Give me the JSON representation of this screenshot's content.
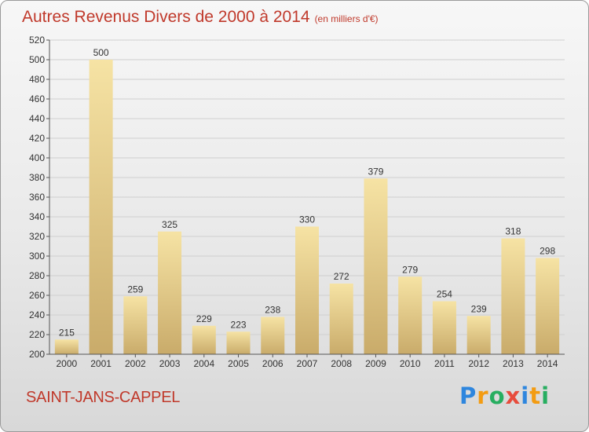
{
  "title": "Autres Revenus Divers de 2000 à 2014",
  "unit_note": "(en milliers d'€)",
  "city": "SAINT-JANS-CAPPEL",
  "logo": {
    "text": "Proxiti",
    "letters": [
      {
        "ch": "P",
        "color": "#2e86de"
      },
      {
        "ch": "r",
        "color": "#f39c12"
      },
      {
        "ch": "o",
        "color": "#27ae60"
      },
      {
        "ch": "x",
        "color": "#e74c3c"
      },
      {
        "ch": "i",
        "color": "#2e86de"
      },
      {
        "ch": "t",
        "color": "#f39c12"
      },
      {
        "ch": "i",
        "color": "#27ae60"
      }
    ]
  },
  "colors": {
    "bar_light": "#f6e3a4",
    "bar_dark": "#c9ab6a",
    "title": "#c0392b",
    "grid": "#cfcfcf"
  },
  "chart_data": {
    "type": "bar",
    "title": "Autres Revenus Divers de 2000 à 2014",
    "subtitle": "(en milliers d'€)",
    "xlabel": "",
    "ylabel": "",
    "categories": [
      "2000",
      "2001",
      "2002",
      "2003",
      "2004",
      "2005",
      "2006",
      "2007",
      "2008",
      "2009",
      "2010",
      "2011",
      "2012",
      "2013",
      "2014"
    ],
    "values": [
      215,
      500,
      259,
      325,
      229,
      223,
      238,
      330,
      272,
      379,
      279,
      254,
      239,
      318,
      298
    ],
    "ylim": [
      200,
      520
    ],
    "yticks": [
      200,
      220,
      240,
      260,
      280,
      300,
      320,
      340,
      360,
      380,
      400,
      420,
      440,
      460,
      480,
      500,
      520
    ],
    "grid": true,
    "legend": "none"
  }
}
